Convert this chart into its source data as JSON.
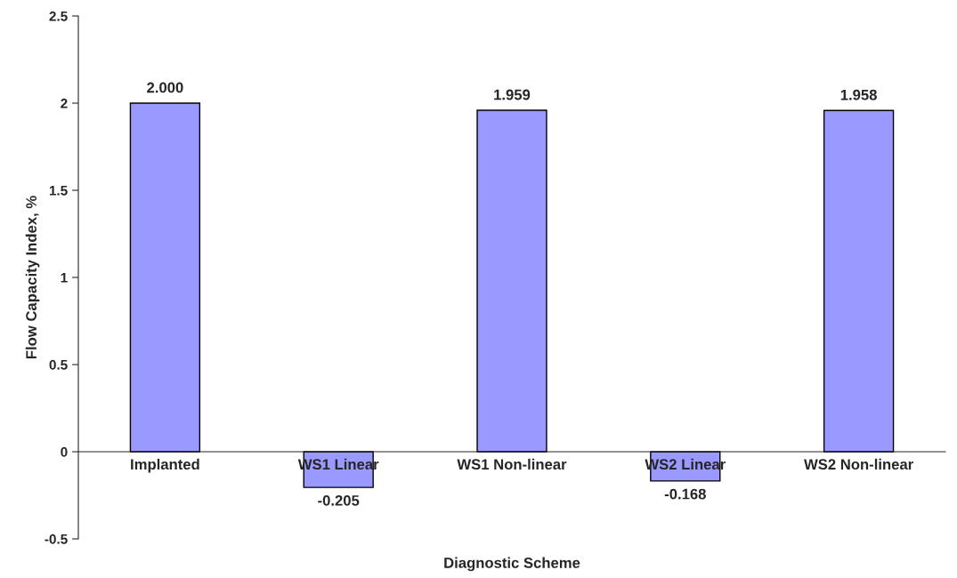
{
  "chart_data": {
    "type": "bar",
    "xlabel": "Diagnostic Scheme",
    "ylabel": "Flow Capacity Index, %",
    "categories": [
      "Implanted",
      "WS1 Linear",
      "WS1 Non-linear",
      "WS2 Linear",
      "WS2 Non-linear"
    ],
    "values": [
      2.0,
      -0.205,
      1.959,
      -0.168,
      1.958
    ],
    "value_labels": [
      "2.000",
      "-0.205",
      "1.959",
      "-0.168",
      "1.958"
    ],
    "color": "#9999ff",
    "ylim": [
      -0.5,
      2.5
    ],
    "yticks": [
      -0.5,
      0,
      0.5,
      1,
      1.5,
      2,
      2.5
    ],
    "grid": false,
    "legend": false
  }
}
